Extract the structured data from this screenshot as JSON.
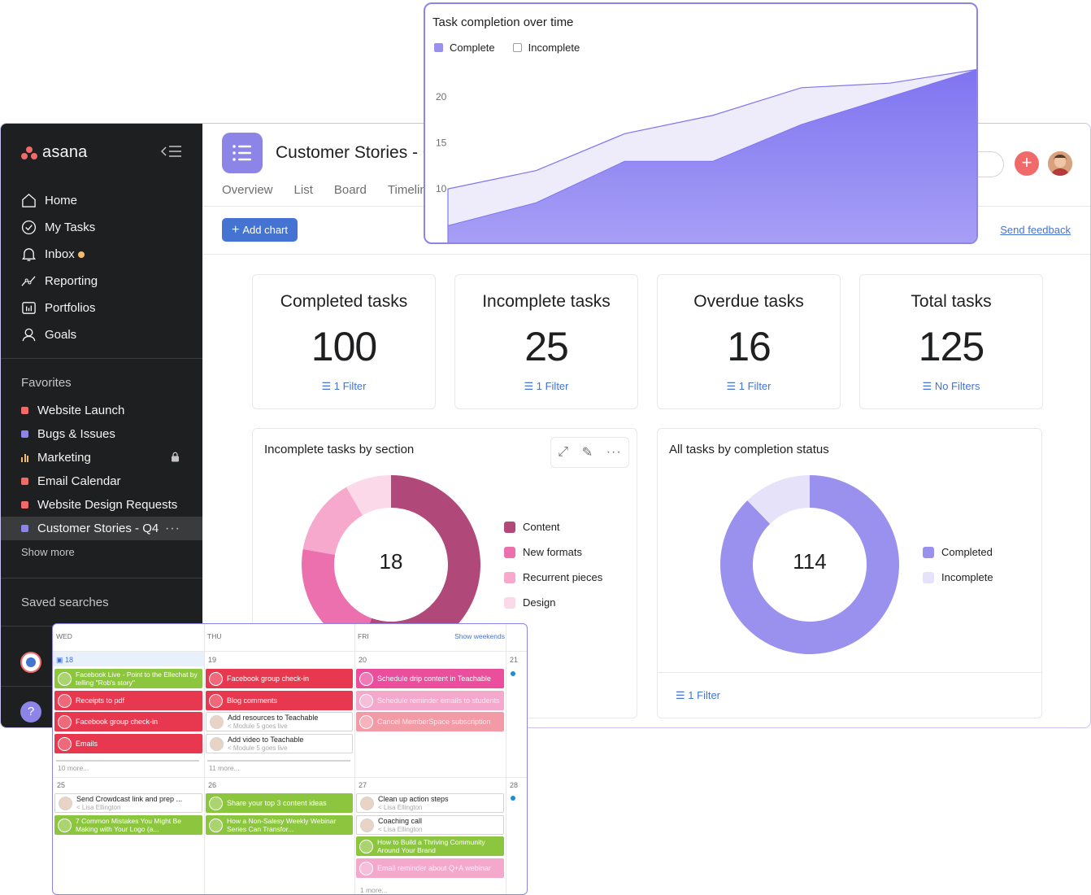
{
  "sidebar": {
    "logo_text": "asana",
    "nav": [
      {
        "label": "Home",
        "icon": "home-icon"
      },
      {
        "label": "My Tasks",
        "icon": "check-circle-icon"
      },
      {
        "label": "Inbox",
        "icon": "bell-icon"
      },
      {
        "label": "Reporting",
        "icon": "trend-icon"
      },
      {
        "label": "Portfolios",
        "icon": "portfolio-icon"
      },
      {
        "label": "Goals",
        "icon": "goals-icon"
      }
    ],
    "favorites_heading": "Favorites",
    "favorites": [
      {
        "label": "Website Launch",
        "color": "#f06a6a"
      },
      {
        "label": "Bugs & Issues",
        "color": "#8d84e8"
      },
      {
        "label": "Marketing",
        "color": "#f1bd6c"
      },
      {
        "label": "Email Calendar",
        "color": "#f06a6a"
      },
      {
        "label": "Website Design Requests",
        "color": "#f06a6a"
      },
      {
        "label": "Customer Stories - Q4",
        "color": "#8d84e8"
      }
    ],
    "show_more": "Show more",
    "saved_searches": "Saved searches"
  },
  "header": {
    "project_title": "Customer Stories - Q4",
    "tabs": [
      "Overview",
      "List",
      "Board",
      "Timeline"
    ],
    "add_chart": "Add chart",
    "send_feedback": "Send feedback"
  },
  "stats": [
    {
      "label": "Completed tasks",
      "value": "100",
      "filter": "1 Filter"
    },
    {
      "label": "Incomplete tasks",
      "value": "25",
      "filter": "1 Filter"
    },
    {
      "label": "Overdue tasks",
      "value": "16",
      "filter": "1 Filter"
    },
    {
      "label": "Total tasks",
      "value": "125",
      "filter": "No Filters"
    }
  ],
  "section_chart": {
    "title": "Incomplete tasks by section",
    "center": "18",
    "legend": [
      {
        "label": "Content",
        "color": "#b1487a"
      },
      {
        "label": "New formats",
        "color": "#ec6fae"
      },
      {
        "label": "Recurrent pieces",
        "color": "#f6a8cd"
      },
      {
        "label": "Design",
        "color": "#fbd9e8"
      }
    ]
  },
  "status_chart": {
    "title": "All tasks by completion status",
    "center": "114",
    "filter": "1 Filter",
    "legend": [
      {
        "label": "Completed",
        "color": "#9a91ee"
      },
      {
        "label": "Incomplete",
        "color": "#e5e2fa"
      }
    ]
  },
  "chart_data": [
    {
      "type": "area",
      "title": "Task completion over time",
      "series": [
        {
          "name": "Complete",
          "values": [
            6,
            8.5,
            13,
            13,
            17,
            20,
            23
          ]
        },
        {
          "name": "Incomplete",
          "values": [
            10,
            12,
            16,
            18,
            21,
            21.5,
            23
          ]
        }
      ],
      "yticks": [
        10,
        15,
        20
      ],
      "ylim": [
        4,
        27
      ],
      "legend": "top-left"
    },
    {
      "type": "pie",
      "title": "Incomplete tasks by section",
      "categories": [
        "Content",
        "New formats",
        "Recurrent pieces",
        "Design"
      ],
      "values": [
        10,
        4,
        2.5,
        1.5
      ]
    },
    {
      "type": "pie",
      "title": "All tasks by completion status",
      "categories": [
        "Completed",
        "Incomplete"
      ],
      "values": [
        100,
        14
      ]
    }
  ],
  "calendar": {
    "headers": [
      "WED",
      "THU",
      "FRI"
    ],
    "show_weekends": "Show weekends",
    "dates_row1": [
      "18",
      "19",
      "20",
      "21"
    ],
    "dates_row2": [
      "25",
      "26",
      "27",
      "28"
    ],
    "more_wed": "10 more...",
    "more_thu": "11 more...",
    "more_fri": "1 more...",
    "tasks": {
      "wed1": "Facebook Live - Point to the Ellechat by telling \"Rob's story\"",
      "wed2": "Receipts to pdf",
      "wed3": "Facebook group check-in",
      "wed4": "Emails",
      "thu1": "Facebook group check-in",
      "thu2": "Blog comments",
      "thu3": "Add resources to Teachable",
      "thu3_sub": "< Module 5 goes live",
      "thu4": "Add video to Teachable",
      "thu4_sub": "< Module 5 goes live",
      "fri1": "Schedule drip content in Teachable",
      "fri2": "Schedule reminder emails to students",
      "fri3": "Cancel MemberSpace subscription",
      "wed5": "Send Crowdcast link and prep ...",
      "wed5_sub": "< Lisa Ellington",
      "wed6": "7 Common Mistakes You Might Be Making with Your Logo (a...",
      "thu5": "Share your top 3 content ideas",
      "thu6": "How a Non-Salesy Weekly Webinar Series Can Transfor...",
      "fri4": "Clean up action steps",
      "fri4_sub": "< Lisa Ellington",
      "fri5": "Coaching call",
      "fri5_sub": "< Lisa Ellington",
      "fri6": "How to Build a Thriving Community Around Your Brand",
      "fri7": "Email reminder about Q+A webinar"
    }
  }
}
